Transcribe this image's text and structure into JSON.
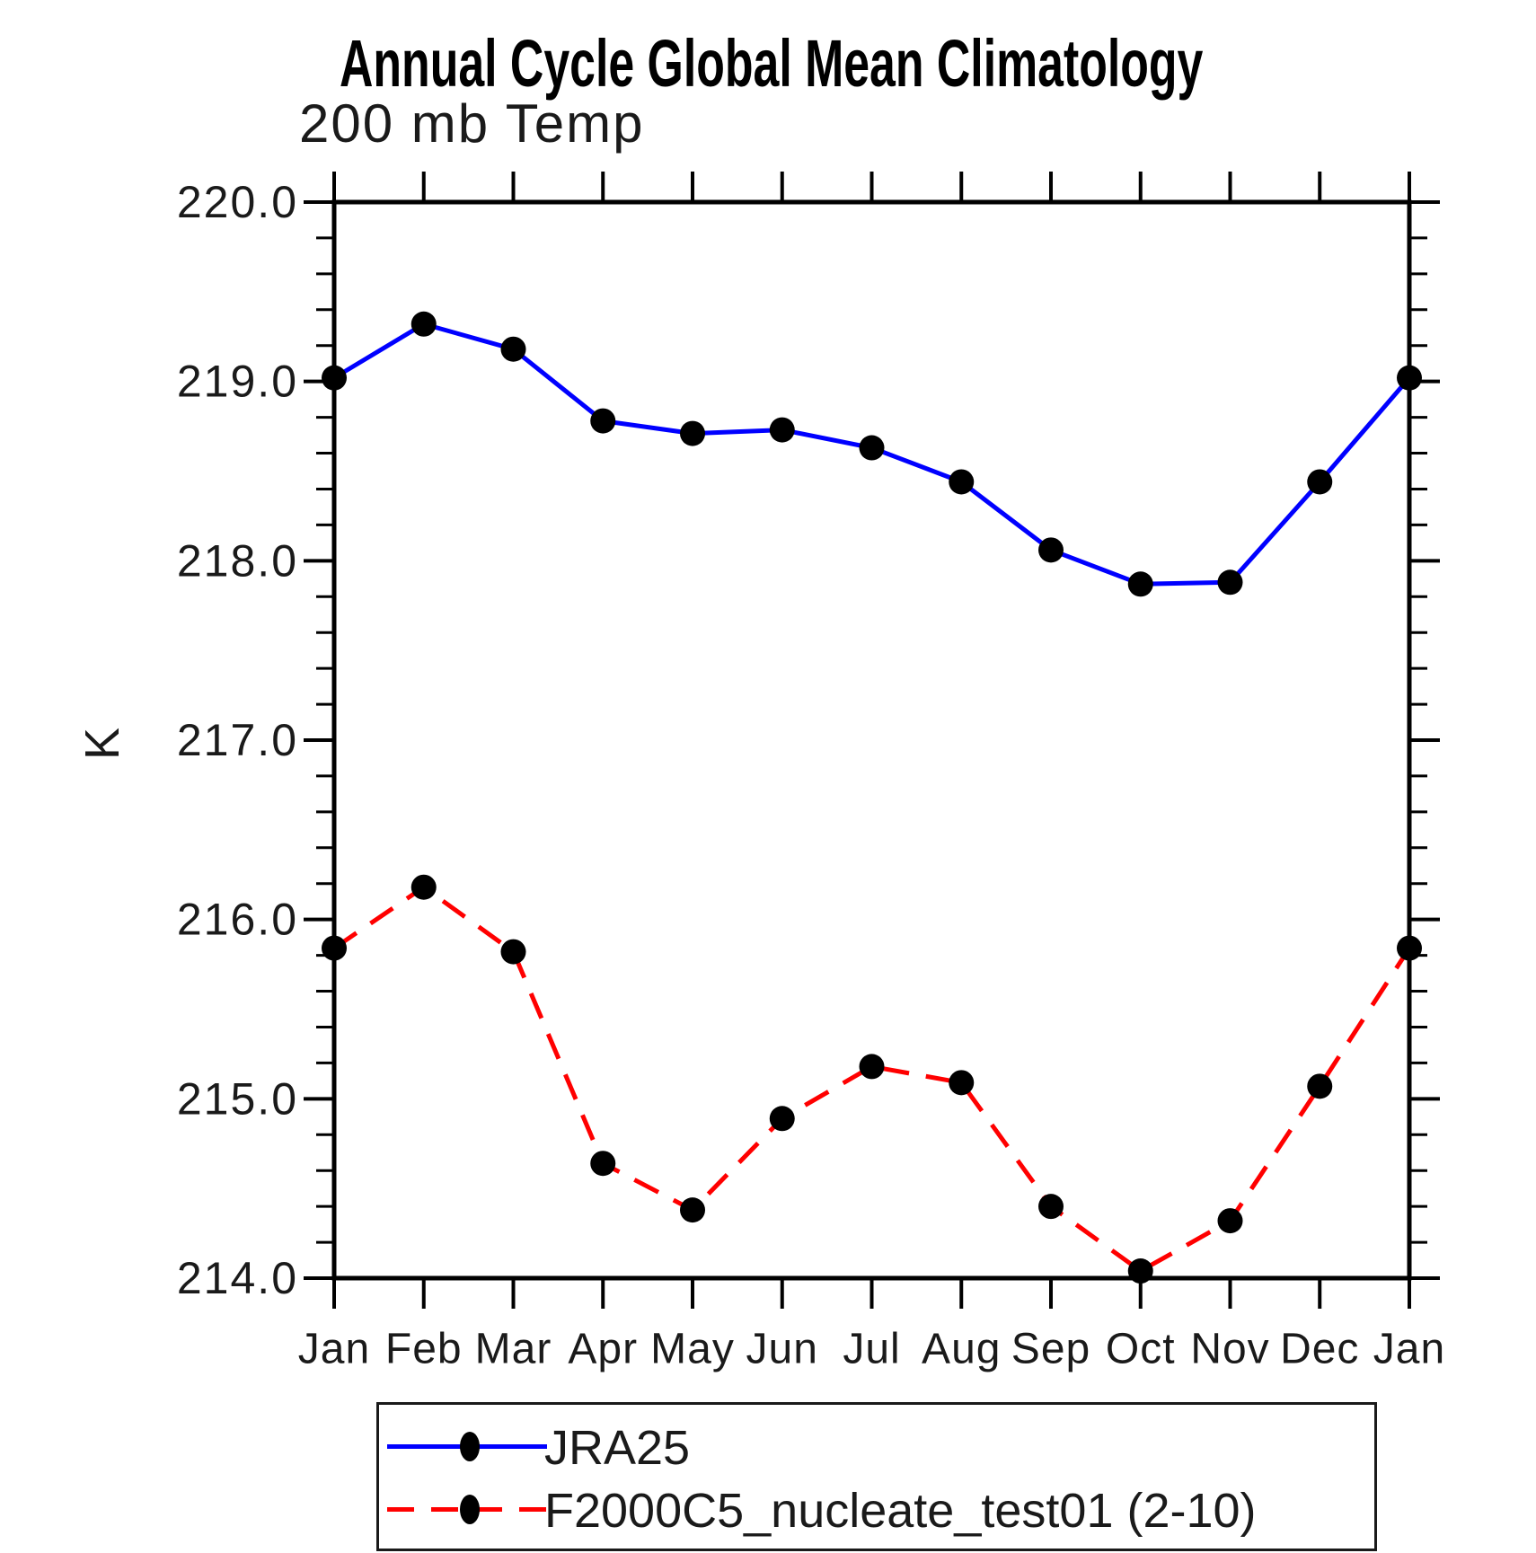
{
  "chart_data": {
    "type": "line",
    "title": "Annual Cycle Global Mean Climatology",
    "subtitle": "200 mb Temp",
    "ylabel": "K",
    "x_categories": [
      "Jan",
      "Feb",
      "Mar",
      "Apr",
      "May",
      "Jun",
      "Jul",
      "Aug",
      "Sep",
      "Oct",
      "Nov",
      "Dec",
      "Jan"
    ],
    "ylim": [
      214.0,
      220.0
    ],
    "yticks_major": [
      214.0,
      215.0,
      216.0,
      217.0,
      218.0,
      219.0,
      220.0
    ],
    "ytick_labels": [
      "214.0",
      "215.0",
      "216.0",
      "217.0",
      "218.0",
      "219.0",
      "220.0"
    ],
    "y_minor_step": 0.2,
    "grid": false,
    "legend_position": "bottom",
    "axis_color": "#000000",
    "series": [
      {
        "name": "JRA25",
        "color": "#0000ff",
        "line_style": "solid",
        "marker": "filled-circle",
        "marker_color": "#000000",
        "values": [
          219.02,
          219.32,
          219.18,
          218.78,
          218.71,
          218.73,
          218.63,
          218.44,
          218.06,
          217.87,
          217.88,
          218.44,
          219.02
        ]
      },
      {
        "name": "F2000C5_nucleate_test01 (2-10)",
        "color": "#ff0000",
        "line_style": "dashed",
        "marker": "filled-circle",
        "marker_color": "#000000",
        "values": [
          215.84,
          216.18,
          215.82,
          214.64,
          214.38,
          214.89,
          215.18,
          215.09,
          214.4,
          214.04,
          214.32,
          215.07,
          215.84
        ]
      }
    ]
  }
}
